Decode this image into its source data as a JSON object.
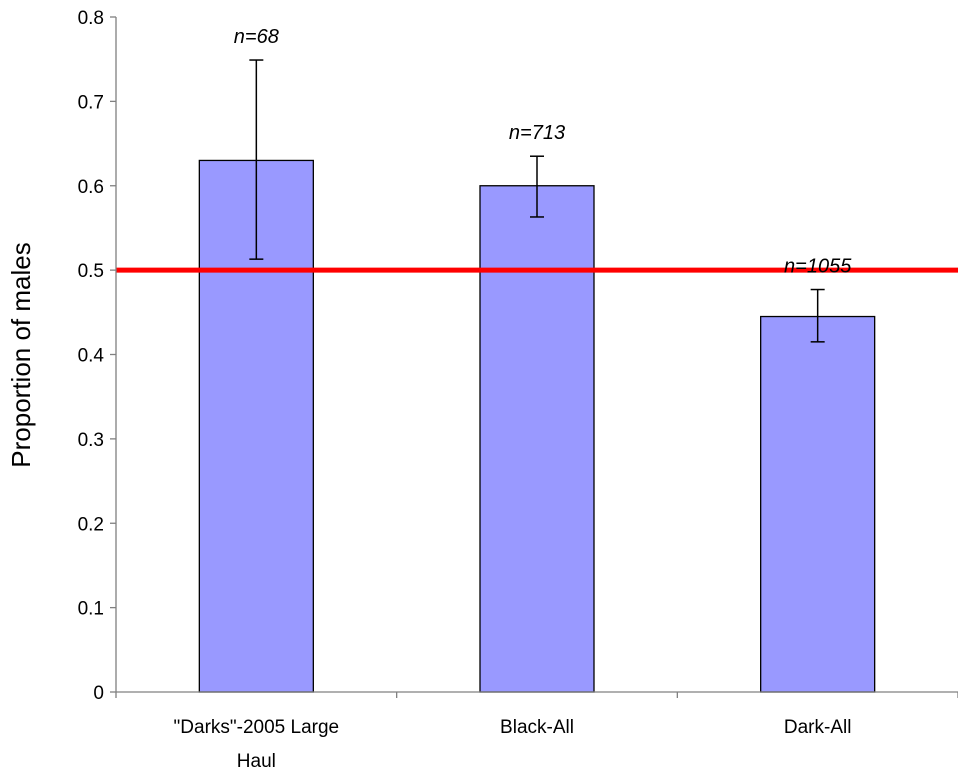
{
  "chart_data": {
    "type": "bar",
    "categories": [
      [
        "\"Darks\"-2005 Large",
        "Haul"
      ],
      [
        "Black-All"
      ],
      [
        "Dark-All"
      ]
    ],
    "values": [
      0.63,
      0.6,
      0.445
    ],
    "error_low": [
      0.513,
      0.563,
      0.415
    ],
    "error_high": [
      0.749,
      0.635,
      0.477
    ],
    "annotations": [
      "n=68",
      "n=713",
      "n=1055"
    ],
    "reference_line": 0.5,
    "title": "",
    "xlabel": "",
    "ylabel": "Proportion of males",
    "ylim": [
      0,
      0.8
    ],
    "yticks": [
      "0",
      "0.1",
      "0.2",
      "0.3",
      "0.4",
      "0.5",
      "0.6",
      "0.7",
      "0.8"
    ],
    "grid": false,
    "legend": "none",
    "colors": {
      "bar_fill": "#9999ff",
      "bar_stroke": "#000000",
      "reference_line": "#ff0000"
    }
  }
}
